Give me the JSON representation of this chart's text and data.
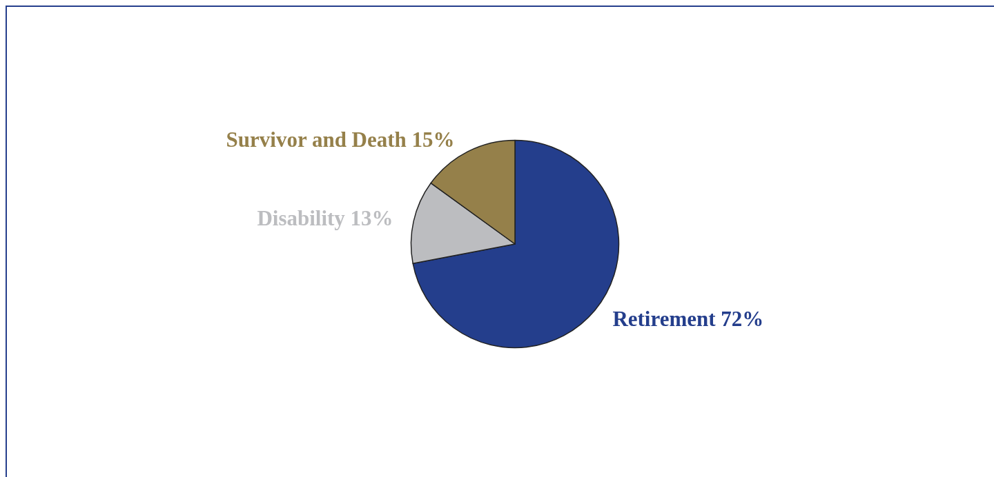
{
  "chart_data": {
    "type": "pie",
    "categories": [
      "Retirement",
      "Disability",
      "Survivor and Death"
    ],
    "values": [
      72,
      13,
      15
    ],
    "value_labels": [
      "72%",
      "13%",
      "15%"
    ],
    "colors": [
      "#243e8c",
      "#bcbdc0",
      "#95804a"
    ]
  }
}
